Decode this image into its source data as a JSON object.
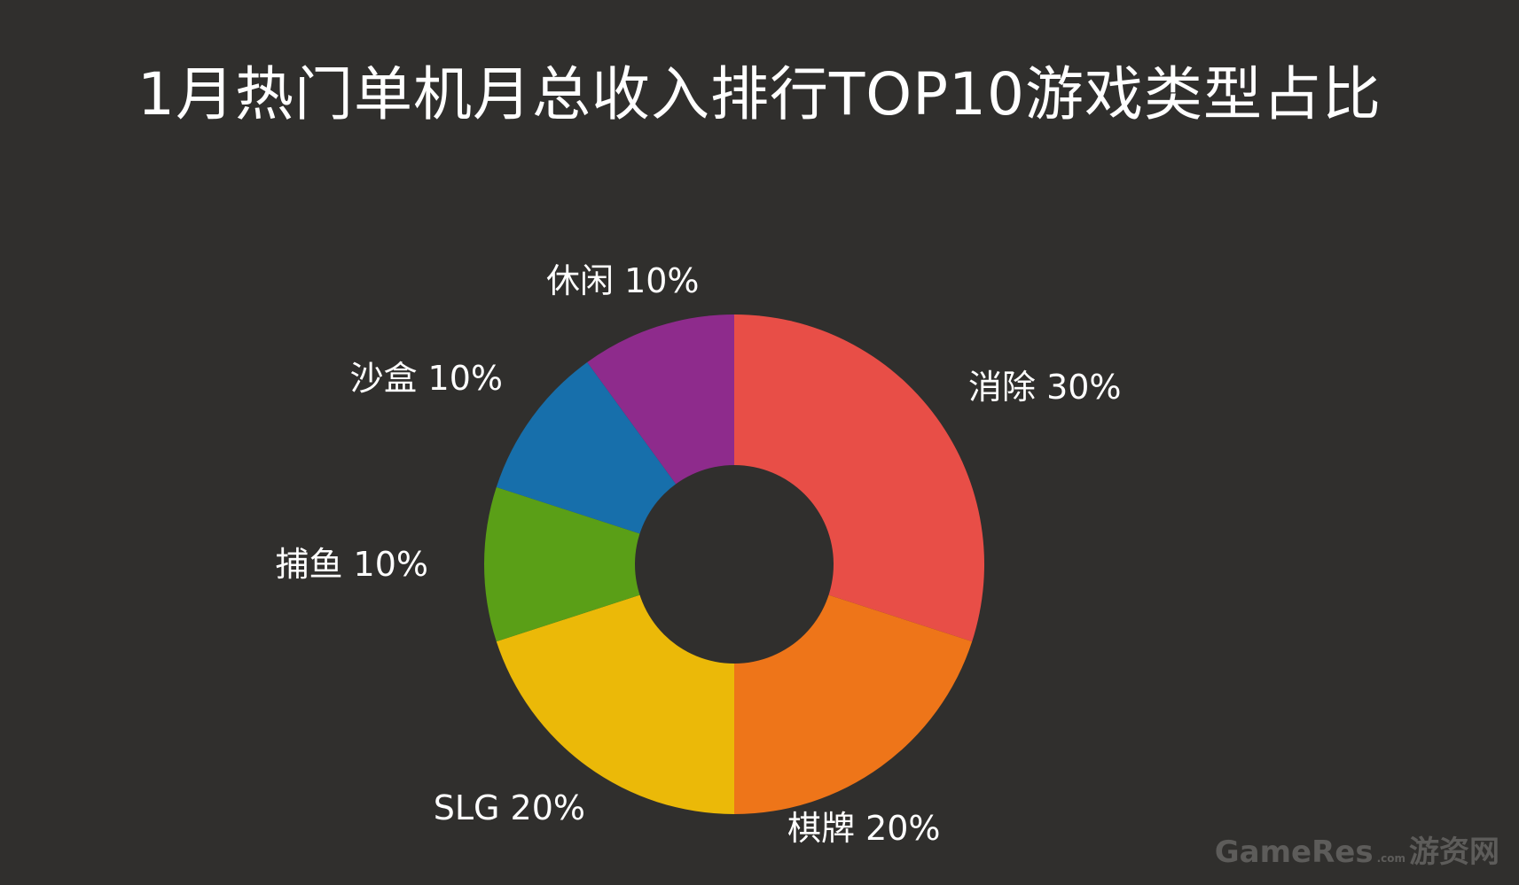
{
  "chart_data": {
    "type": "pie",
    "title": "1月热门单机月总收入排行TOP10游戏类型占比",
    "donut": true,
    "slices": [
      {
        "name": "消除",
        "value": 30,
        "label": "消除 30%",
        "color": "#e84e47"
      },
      {
        "name": "棋牌",
        "value": 20,
        "label": "棋牌 20%",
        "color": "#ee7519"
      },
      {
        "name": "SLG",
        "value": 20,
        "label": "SLG 20%",
        "color": "#ebb908"
      },
      {
        "name": "捕鱼",
        "value": 10,
        "label": "捕鱼 10%",
        "color": "#5a9f17"
      },
      {
        "name": "沙盒",
        "value": 10,
        "label": "沙盒 10%",
        "color": "#176fab"
      },
      {
        "name": "休闲",
        "value": 10,
        "label": "休闲 10%",
        "color": "#8e2b8c"
      }
    ]
  },
  "watermark": {
    "brand": "GameRes",
    "domain": ".com",
    "cn": "游资网"
  },
  "colors": {
    "background": "#302f2d",
    "text": "#ffffff"
  }
}
